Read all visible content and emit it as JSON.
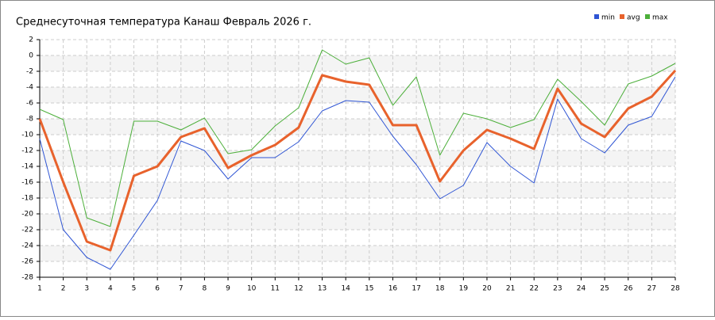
{
  "chart_data": {
    "type": "line",
    "title": "Среднесуточная температура Канаш  Февраль 2026 г.",
    "categories": [
      "1",
      "2",
      "3",
      "4",
      "5",
      "6",
      "7",
      "8",
      "9",
      "10",
      "11",
      "12",
      "13",
      "14",
      "15",
      "16",
      "17",
      "18",
      "19",
      "20",
      "21",
      "22",
      "23",
      "24",
      "25",
      "26",
      "27",
      "28"
    ],
    "series": [
      {
        "name": "min",
        "color": "#2f55d4",
        "values": [
          -10.5,
          -22,
          -25.5,
          -27,
          -22.7,
          -18.3,
          -10.8,
          -12,
          -15.6,
          -12.9,
          -12.9,
          -10.9,
          -7,
          -5.7,
          -5.9,
          -10.2,
          -13.8,
          -18.1,
          -16.4,
          -11,
          -14,
          -16.1,
          -5.5,
          -10.5,
          -12.3,
          -8.8,
          -7.7,
          -2.7
        ]
      },
      {
        "name": "avg",
        "color": "#e8622c",
        "values": [
          -8,
          -16,
          -23.5,
          -24.6,
          -15.2,
          -14,
          -10.3,
          -9.2,
          -14.2,
          -12.6,
          -11.3,
          -9.1,
          -2.5,
          -3.3,
          -3.7,
          -8.8,
          -8.8,
          -15.9,
          -12,
          -9.4,
          -10.5,
          -11.8,
          -4.2,
          -8.6,
          -10.3,
          -6.7,
          -5.2,
          -1.9
        ]
      },
      {
        "name": "max",
        "color": "#4caf3a",
        "values": [
          -6.8,
          -8.1,
          -20.5,
          -21.6,
          -8.3,
          -8.3,
          -9.4,
          -7.9,
          -12.4,
          -11.9,
          -8.9,
          -6.6,
          0.7,
          -1.1,
          -0.3,
          -6.3,
          -2.7,
          -12.6,
          -7.3,
          -8,
          -9.1,
          -8.1,
          -3,
          -5.8,
          -8.8,
          -3.6,
          -2.6,
          -1
        ]
      }
    ],
    "ylim": [
      -28,
      2
    ],
    "yticks": [
      2,
      0,
      -2,
      -4,
      -6,
      -8,
      -10,
      -12,
      -14,
      -16,
      -18,
      -20,
      -22,
      -24,
      -26,
      -28
    ],
    "grid": true,
    "legend": "top-right"
  }
}
